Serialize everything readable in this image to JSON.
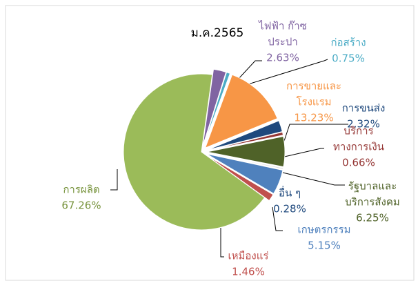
{
  "chart_data": {
    "type": "pie",
    "title": "ม.ค.2565",
    "categories": [
      [
        "ไฟฟ้า ก๊าซ",
        "ประปา"
      ],
      [
        "ก่อสร้าง"
      ],
      [
        "การขายและ",
        "โรงแรม"
      ],
      [
        "การขนส่ง"
      ],
      [
        "บริการ",
        "ทางการเงิน"
      ],
      [
        "รัฐบาลและ",
        "บริการสังคม"
      ],
      [
        "อื่น ๆ"
      ],
      [
        "เกษตรกรรม"
      ],
      [
        "เหมืองแร่"
      ],
      [
        "การผลิต"
      ]
    ],
    "values": [
      2.63,
      0.75,
      13.23,
      2.32,
      0.66,
      6.25,
      0.28,
      5.15,
      1.46,
      67.26
    ],
    "value_labels": [
      "2.63%",
      "0.75%",
      "13.23%",
      "2.32%",
      "0.66%",
      "6.25%",
      "0.28%",
      "5.15%",
      "1.46%",
      "67.26%"
    ],
    "colors": [
      "#8064a2",
      "#4bacc6",
      "#f79646",
      "#1f497d",
      "#953735",
      "#4f6228",
      "#d9d9d9",
      "#4f81bd",
      "#c0504d",
      "#9bbb59"
    ],
    "label_colors": [
      "#8064a2",
      "#4bacc6",
      "#f79646",
      "#1f497d",
      "#953735",
      "#4f6228",
      "#1f497d",
      "#4f81bd",
      "#c0504d",
      "#77933c"
    ]
  }
}
